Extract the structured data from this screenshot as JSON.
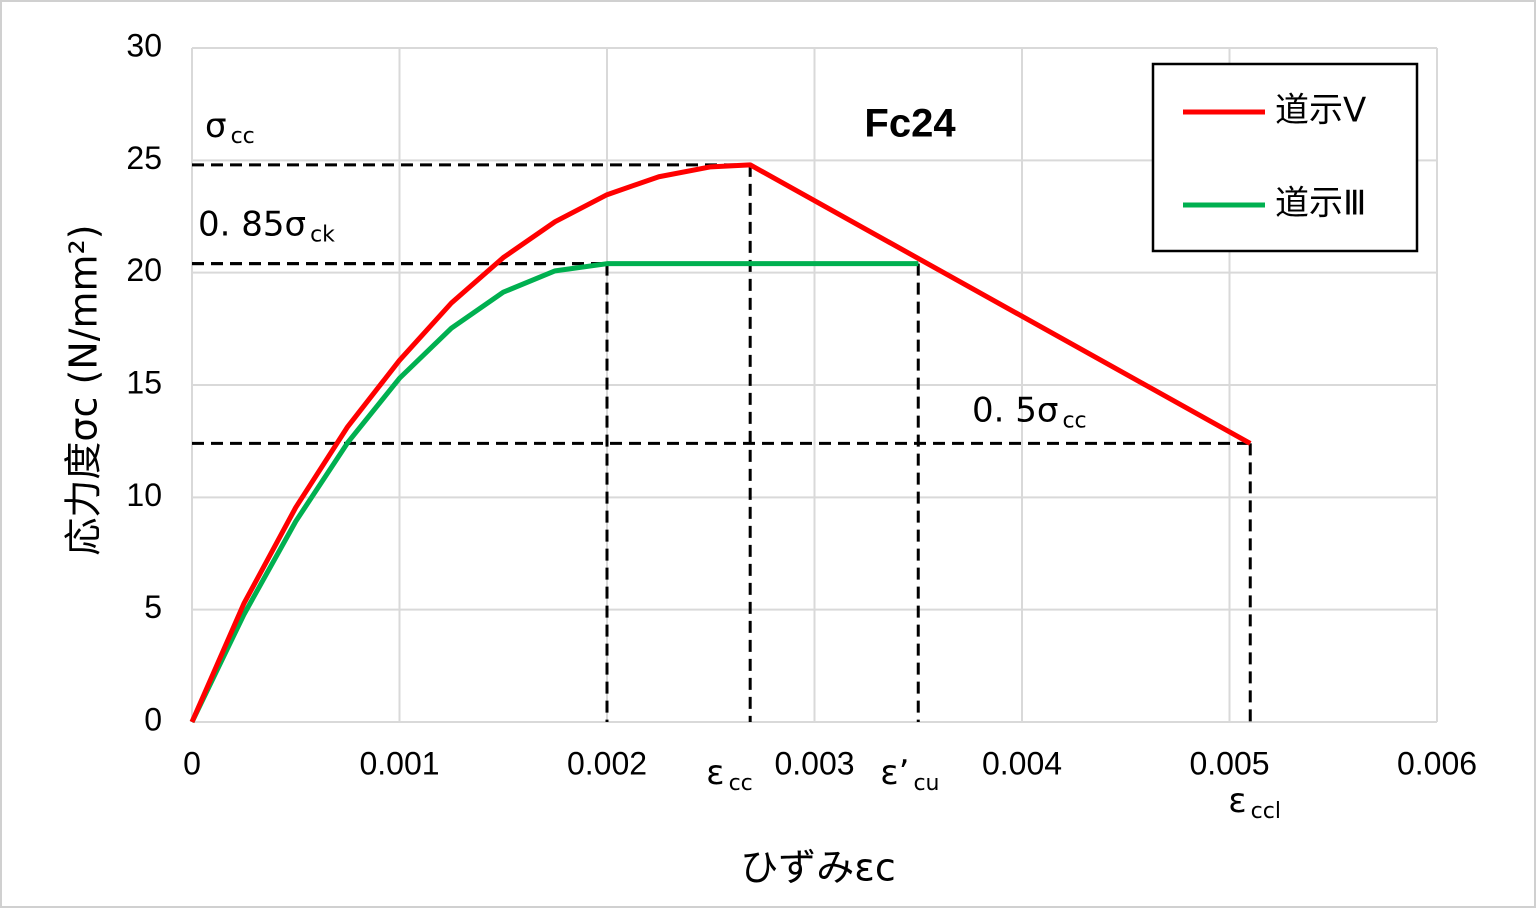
{
  "chart_data": {
    "type": "line",
    "title": "Fc24",
    "x_label": "ひずみεc",
    "y_label": "応力度σc (N/mm²)",
    "xlim": [
      0,
      0.006
    ],
    "xticks": [
      0,
      0.001,
      0.002,
      0.003,
      0.004,
      0.005,
      0.006
    ],
    "ylim": [
      0,
      30
    ],
    "yticks": [
      0,
      5,
      10,
      15,
      20,
      25,
      30
    ],
    "grid": true,
    "legend": "top-right",
    "series": [
      {
        "name": "道示Ⅴ",
        "color": "#ff0000",
        "x": [
          0,
          0.00025,
          0.0005,
          0.00075,
          0.001,
          0.00125,
          0.0015,
          0.00175,
          0.002,
          0.00225,
          0.0025,
          0.00269,
          0.0051
        ],
        "values": [
          0,
          5.27,
          9.55,
          13.14,
          16.1,
          18.65,
          20.67,
          22.27,
          23.47,
          24.27,
          24.71,
          24.8,
          12.4
        ]
      },
      {
        "name": "道示Ⅲ",
        "color": "#00b050",
        "x": [
          0,
          0.00025,
          0.0005,
          0.00075,
          0.001,
          0.00125,
          0.0015,
          0.00175,
          0.002,
          0.0035
        ],
        "values": [
          0,
          4.78,
          8.93,
          12.43,
          15.3,
          17.53,
          19.13,
          20.08,
          20.4,
          20.4
        ]
      }
    ],
    "guides": [
      {
        "x": 0.00269,
        "y": 24.8,
        "y_label": {
          "text": "σ",
          "sub": "cc"
        },
        "x_label": {
          "text": "ε",
          "sub": "cc"
        }
      },
      {
        "x": 0.0035,
        "y": 20.4,
        "y_label": {
          "text": "0. 85σ",
          "sub": "ck"
        },
        "x_label": {
          "text": "ε’",
          "sub": "cu"
        }
      },
      {
        "x": 0.0051,
        "y": 12.4,
        "y_label": {
          "text": "0. 5σ",
          "sub": "cc"
        },
        "x_label": {
          "text": "ε",
          "sub": "ccl"
        }
      },
      {
        "x": 0.002,
        "y": 20.4
      }
    ]
  }
}
